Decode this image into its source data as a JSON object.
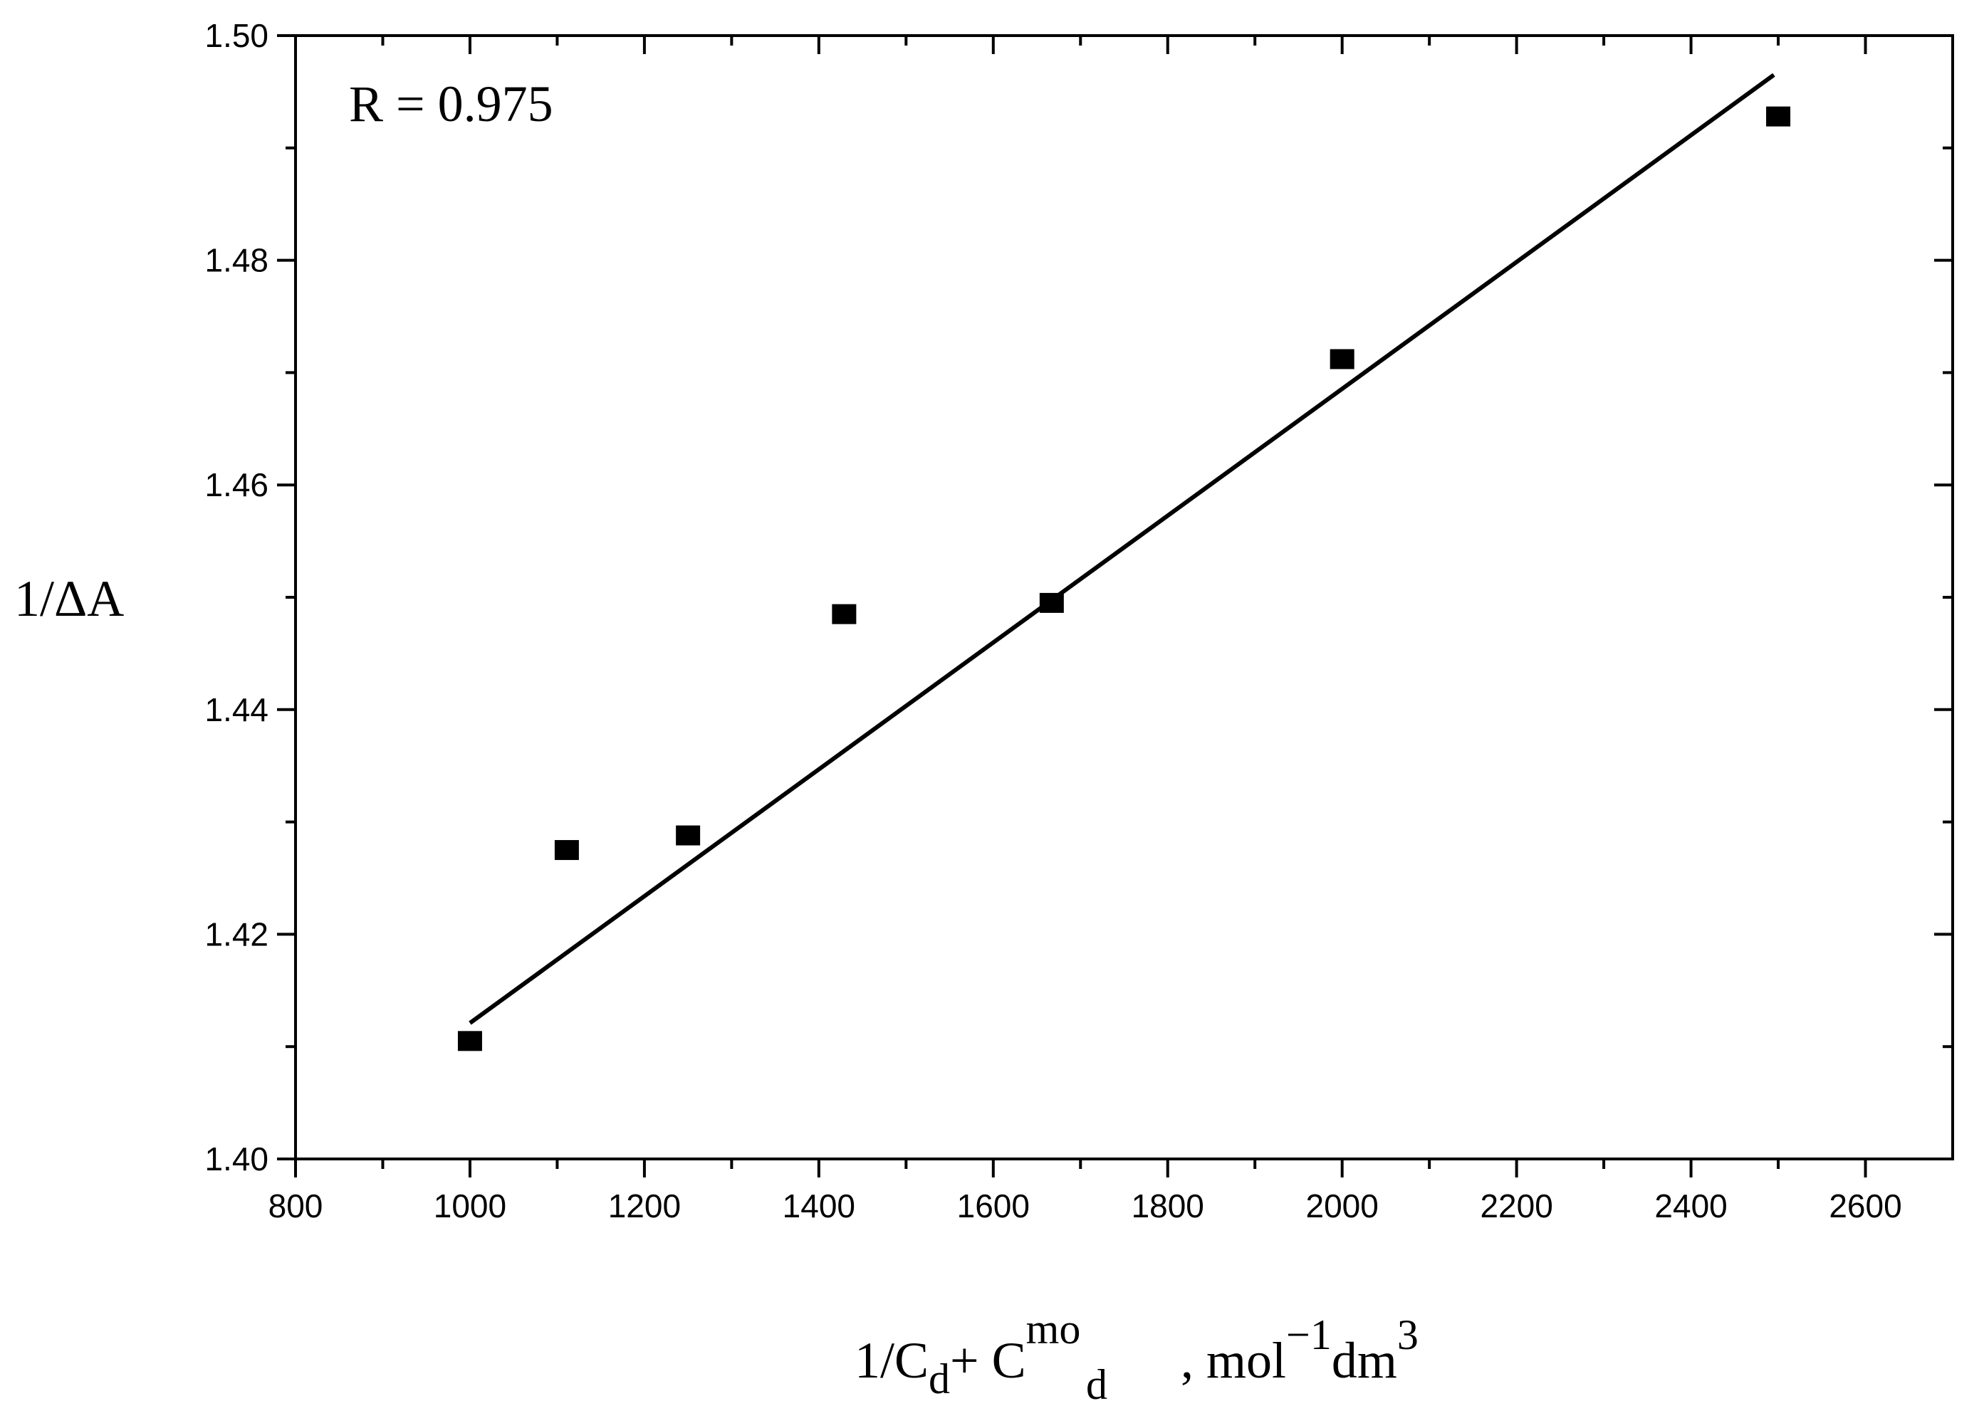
{
  "chart_data": {
    "type": "scatter",
    "title": "",
    "annotation": "R = 0.975",
    "xlabel": {
      "prefix": "1/C",
      "sub1": "d",
      "plus": "+ C",
      "sup2": "mo",
      "sub2": "d",
      "unit_main": " , mol",
      "unit_sup": "−1",
      "unit_after": "dm",
      "unit_sup2": "3"
    },
    "ylabel": "1/ΔA",
    "xlim": [
      800,
      2700
    ],
    "ylim": [
      1.4,
      1.5
    ],
    "x_ticks": [
      800,
      1000,
      1200,
      1400,
      1600,
      1800,
      2000,
      2200,
      2400,
      2600
    ],
    "x_tick_labels": [
      "800",
      "1000",
      "1200",
      "1400",
      "1600",
      "1800",
      "2000",
      "2200",
      "2400",
      "2600"
    ],
    "y_ticks": [
      1.4,
      1.42,
      1.44,
      1.46,
      1.48,
      1.5
    ],
    "y_tick_labels": [
      "1.40",
      "1.42",
      "1.44",
      "1.46",
      "1.48",
      "1.50"
    ],
    "series": [
      {
        "name": "data",
        "marker": "square",
        "x": [
          1000,
          1111,
          1250,
          1429,
          1667,
          2000,
          2500
        ],
        "y": [
          1.4105,
          1.4275,
          1.4288,
          1.4485,
          1.4495,
          1.4712,
          1.4928
        ]
      }
    ],
    "fit_line": {
      "x": [
        1000,
        2495
      ],
      "y": [
        1.4121,
        1.4965
      ]
    }
  }
}
